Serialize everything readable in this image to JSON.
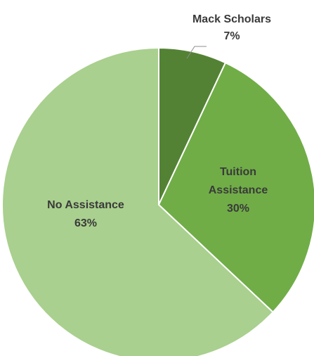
{
  "chart_data": {
    "type": "pie",
    "title": "",
    "slices": [
      {
        "label": "Mack Scholars",
        "value": 7,
        "value_label": "7%",
        "color": "#548235"
      },
      {
        "label": "Tuition Assistance",
        "value": 30,
        "value_label": "30%",
        "color": "#70ad47"
      },
      {
        "label": "No Assistance",
        "value": 63,
        "value_label": "63%",
        "color": "#a9d08e"
      }
    ],
    "legend": "none",
    "data_labels": "category and percentage"
  },
  "labels": {
    "mack": {
      "line1": "Mack Scholars",
      "line2": "7%"
    },
    "tuition": {
      "line1": "Tuition",
      "line2": "Assistance",
      "line3": "30%"
    },
    "none": {
      "line1": "No Assistance",
      "line2": "63%"
    }
  }
}
